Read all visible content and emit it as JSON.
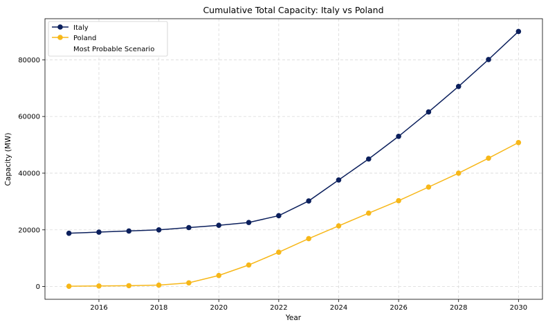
{
  "chart_data": {
    "type": "line",
    "title": "Cumulative Total Capacity: Italy vs Poland",
    "xlabel": "Year",
    "ylabel": "Capacity (MW)",
    "x": [
      2015,
      2016,
      2017,
      2018,
      2019,
      2020,
      2021,
      2022,
      2023,
      2024,
      2025,
      2026,
      2027,
      2028,
      2029,
      2030
    ],
    "xlim": [
      2014.2,
      2030.8
    ],
    "ylim": [
      -4500,
      94500
    ],
    "xticks": [
      2016,
      2018,
      2020,
      2022,
      2024,
      2026,
      2028,
      2030
    ],
    "yticks": [
      0,
      20000,
      40000,
      60000,
      80000
    ],
    "grid": true,
    "legend_position": "top-left",
    "series": [
      {
        "name": "Italy",
        "color": "#0b1f5c",
        "values": [
          18800,
          19200,
          19600,
          20000,
          20800,
          21600,
          22600,
          25000,
          30200,
          37600,
          45000,
          53000,
          61600,
          70600,
          80100,
          90000
        ]
      },
      {
        "name": "Poland",
        "color": "#f7b718",
        "values": [
          100,
          200,
          300,
          500,
          1300,
          3900,
          7600,
          12100,
          16900,
          21400,
          25900,
          30300,
          35100,
          40000,
          45300,
          50800
        ]
      }
    ],
    "legend_extra": "Most Probable Scenario"
  }
}
